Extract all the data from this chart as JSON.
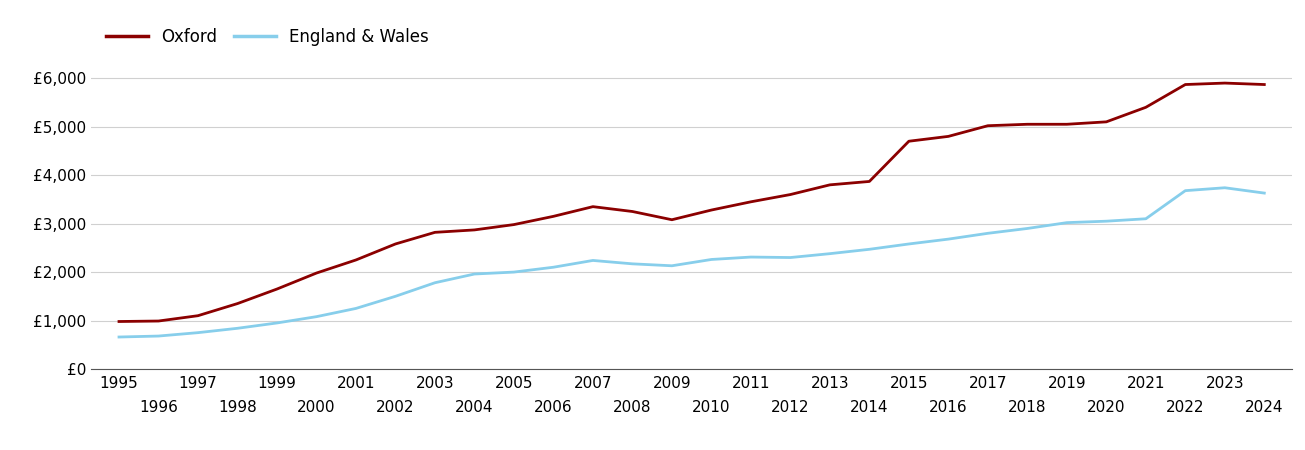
{
  "oxford": {
    "years": [
      1995,
      1996,
      1997,
      1998,
      1999,
      2000,
      2001,
      2002,
      2003,
      2004,
      2005,
      2006,
      2007,
      2008,
      2009,
      2010,
      2011,
      2012,
      2013,
      2014,
      2015,
      2016,
      2017,
      2018,
      2019,
      2020,
      2021,
      2022,
      2023,
      2024
    ],
    "values": [
      980,
      990,
      1100,
      1350,
      1650,
      1980,
      2250,
      2580,
      2820,
      2870,
      2980,
      3150,
      3350,
      3250,
      3080,
      3280,
      3450,
      3600,
      3800,
      3870,
      4700,
      4800,
      5020,
      5050,
      5050,
      5100,
      5400,
      5870,
      5900,
      5870
    ]
  },
  "england_wales": {
    "years": [
      1995,
      1996,
      1997,
      1998,
      1999,
      2000,
      2001,
      2002,
      2003,
      2004,
      2005,
      2006,
      2007,
      2008,
      2009,
      2010,
      2011,
      2012,
      2013,
      2014,
      2015,
      2016,
      2017,
      2018,
      2019,
      2020,
      2021,
      2022,
      2023,
      2024
    ],
    "values": [
      660,
      680,
      750,
      840,
      950,
      1080,
      1250,
      1500,
      1780,
      1960,
      2000,
      2100,
      2240,
      2170,
      2130,
      2260,
      2310,
      2300,
      2380,
      2470,
      2580,
      2680,
      2800,
      2900,
      3020,
      3050,
      3100,
      3680,
      3740,
      3630
    ]
  },
  "oxford_color": "#8B0000",
  "england_wales_color": "#87CEEB",
  "background_color": "#ffffff",
  "grid_color": "#d0d0d0",
  "line_width": 2.0,
  "ylim": [
    0,
    6500
  ],
  "yticks": [
    0,
    1000,
    2000,
    3000,
    4000,
    5000,
    6000
  ],
  "ytick_labels": [
    "£0",
    "£1,000",
    "£2,000",
    "£3,000",
    "£4,000",
    "£5,000",
    "£6,000"
  ],
  "legend_oxford": "Oxford",
  "legend_ew": "England & Wales",
  "tick_fontsize": 11,
  "legend_fontsize": 12,
  "xlim_left": 1994.3,
  "xlim_right": 2024.7
}
